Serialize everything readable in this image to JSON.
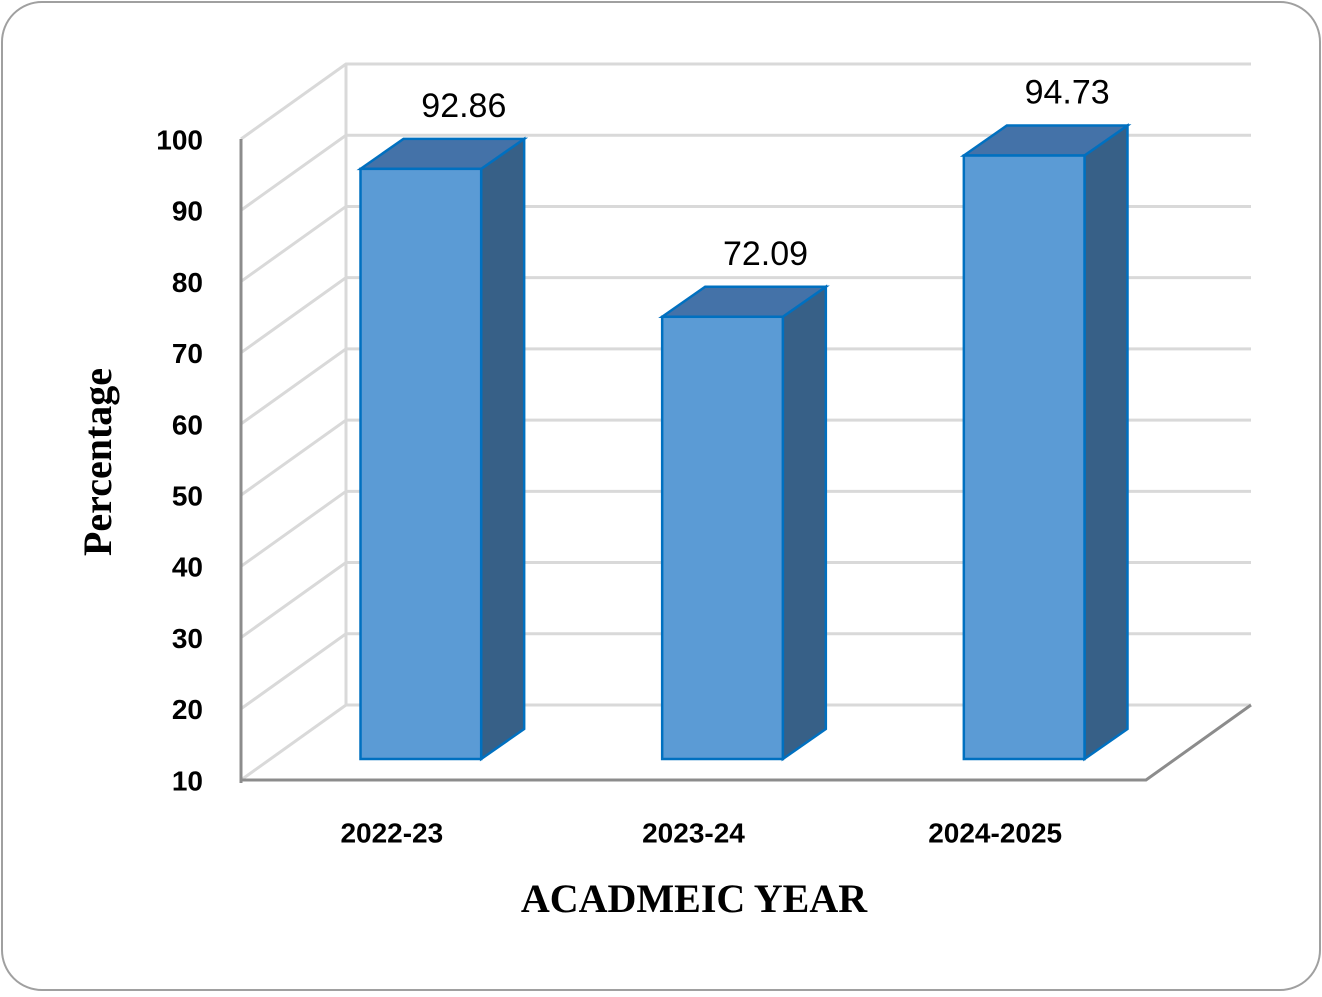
{
  "chart_data": {
    "type": "bar3d",
    "categories": [
      "2022-23",
      "2023-24",
      "2024-2025"
    ],
    "values": [
      92.86,
      72.09,
      94.73
    ],
    "color": "#5b9bd5",
    "ylim": [
      10,
      100
    ],
    "yticks": [
      10,
      20,
      30,
      40,
      50,
      60,
      70,
      80,
      90,
      100
    ],
    "grid": true,
    "xlabel": "ACADMEIC YEAR",
    "ylabel": "Percentage"
  }
}
